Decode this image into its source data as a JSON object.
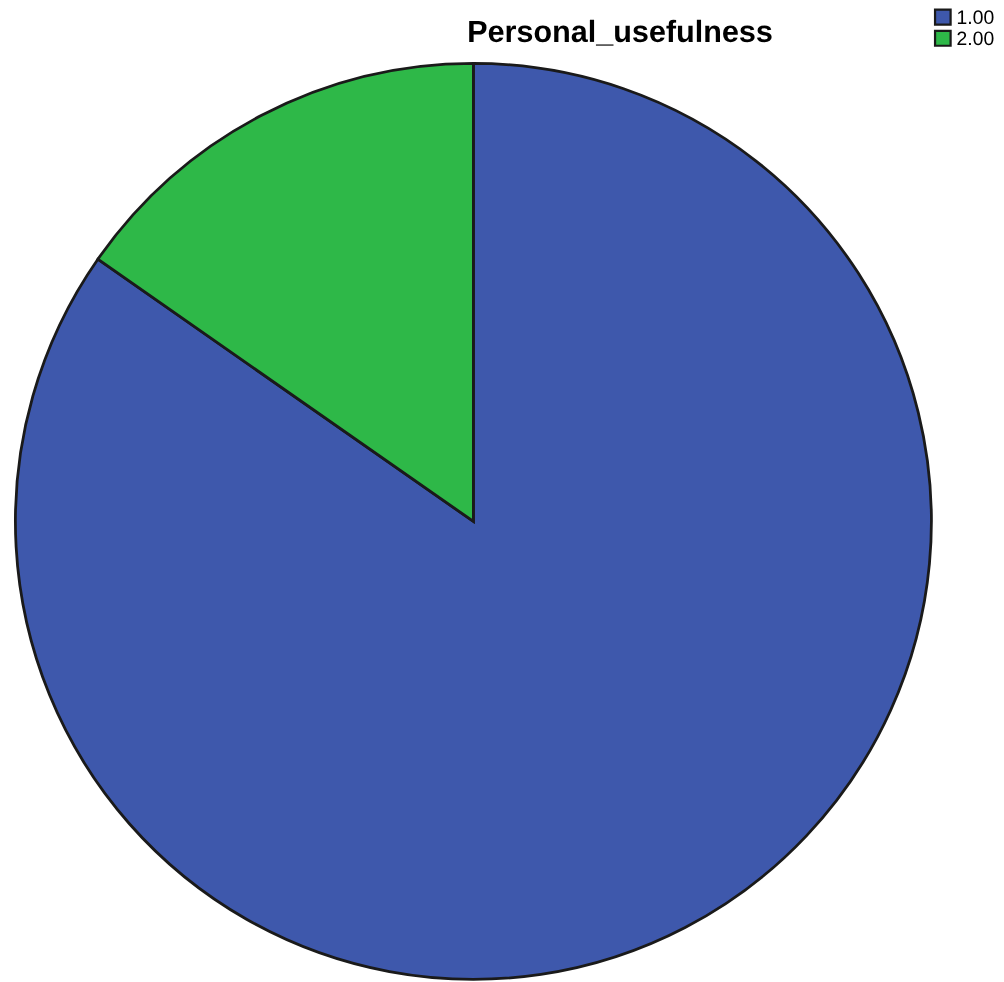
{
  "chart_data": {
    "type": "pie",
    "title": "Personal_usefulness",
    "categories": [
      "1.00",
      "2.00"
    ],
    "values": [
      84.7,
      15.3
    ],
    "colors": [
      "#3e58ac",
      "#2eb848"
    ],
    "legend": "top right"
  }
}
